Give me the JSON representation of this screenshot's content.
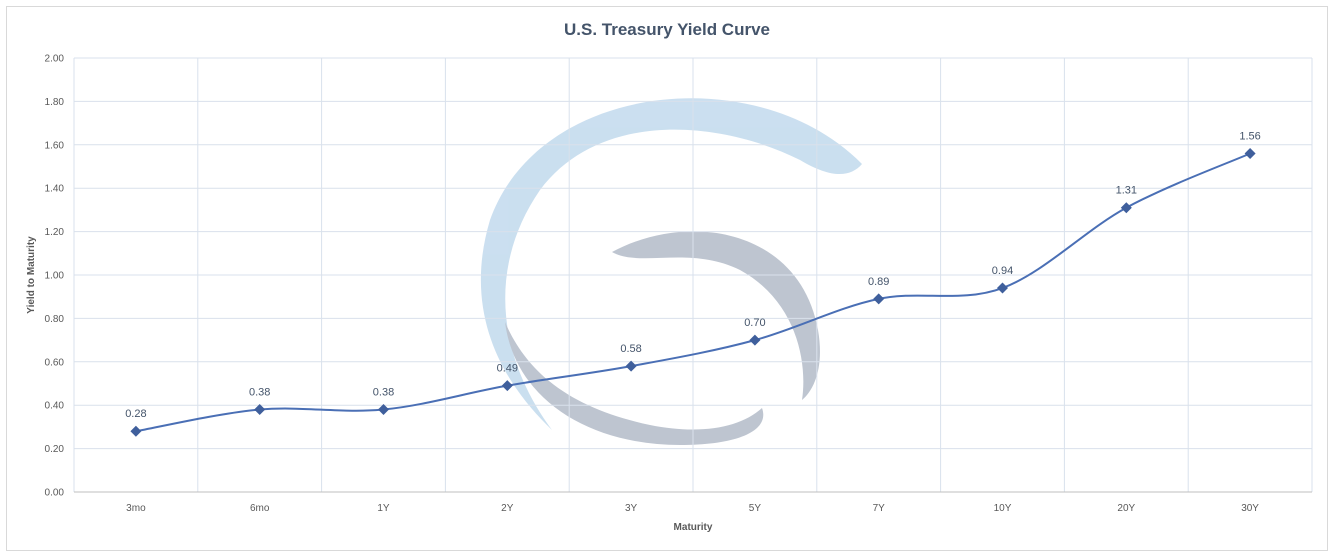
{
  "chart_data": {
    "type": "line",
    "title": "U.S. Treasury Yield Curve",
    "xlabel": "Maturity",
    "ylabel": "Yield to Maturity",
    "categories": [
      "3mo",
      "6mo",
      "1Y",
      "2Y",
      "3Y",
      "5Y",
      "7Y",
      "10Y",
      "20Y",
      "30Y"
    ],
    "series": [
      {
        "values": [
          0.28,
          0.38,
          0.38,
          0.49,
          0.58,
          0.7,
          0.89,
          0.94,
          1.31,
          1.56
        ],
        "data_labels": [
          "0.28",
          "0.38",
          "0.38",
          "0.49",
          "0.58",
          "0.70",
          "0.89",
          "0.94",
          "1.31",
          "1.56"
        ]
      }
    ],
    "ylim": [
      0,
      2.0
    ],
    "yticks": [
      "0.00",
      "0.20",
      "0.40",
      "0.60",
      "0.80",
      "1.00",
      "1.20",
      "1.40",
      "1.60",
      "1.80",
      "2.00"
    ],
    "grid": true,
    "line_style": "smooth",
    "marker": "diamond",
    "colors": {
      "line": "#4a6fb5",
      "marker": "#3f5f9c",
      "grid": "#d9e1ec",
      "title": "#44546a",
      "watermark_light": "#c5dcee",
      "watermark_dark": "#b7bfcc"
    },
    "watermark_icon": "swirl-logo-icon"
  }
}
